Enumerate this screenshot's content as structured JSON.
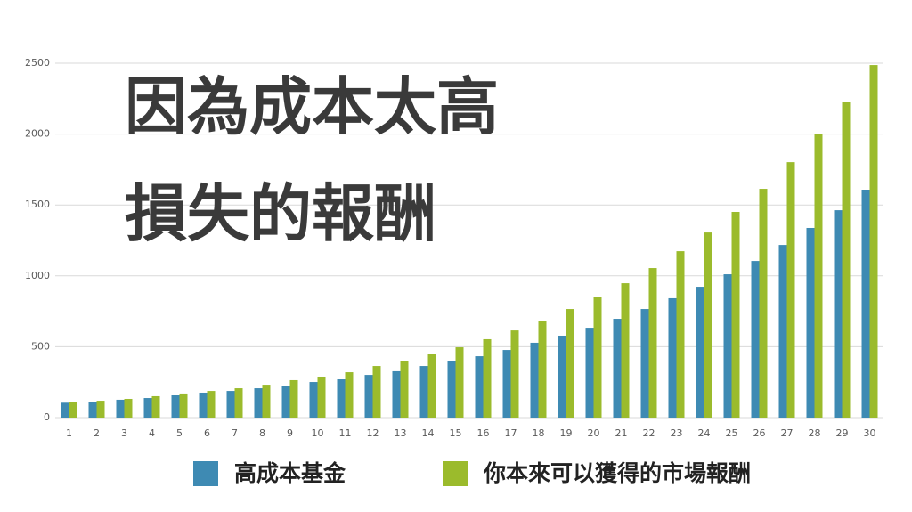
{
  "chart_data": {
    "type": "bar",
    "annotations": [
      "因為成本太高",
      "損失的報酬"
    ],
    "categories": [
      "1",
      "2",
      "3",
      "4",
      "5",
      "6",
      "7",
      "8",
      "9",
      "10",
      "11",
      "12",
      "13",
      "14",
      "15",
      "16",
      "17",
      "18",
      "19",
      "20",
      "21",
      "22",
      "23",
      "24",
      "25",
      "26",
      "27",
      "28",
      "29",
      "30"
    ],
    "series": [
      {
        "name": "高成本基金",
        "color": "#3e8ab3",
        "values": [
          105,
          113,
          126,
          138,
          157,
          176,
          188,
          207,
          226,
          251,
          270,
          301,
          327,
          364,
          402,
          433,
          477,
          528,
          578,
          634,
          697,
          766,
          842,
          923,
          1011,
          1105,
          1218,
          1338,
          1463,
          1608
        ]
      },
      {
        "name": "你本來可以獲得的市場報酬",
        "color": "#9bbb2c",
        "values": [
          107,
          119,
          132,
          151,
          170,
          188,
          207,
          232,
          264,
          289,
          320,
          364,
          402,
          446,
          496,
          553,
          615,
          684,
          766,
          848,
          948,
          1055,
          1174,
          1306,
          1451,
          1614,
          1802,
          2003,
          2229,
          2487
        ]
      }
    ],
    "ylim": [
      0,
      2500
    ],
    "yticks": [
      0,
      500,
      1000,
      1500,
      2000,
      2500
    ],
    "grid": true,
    "legend": "bottom"
  }
}
